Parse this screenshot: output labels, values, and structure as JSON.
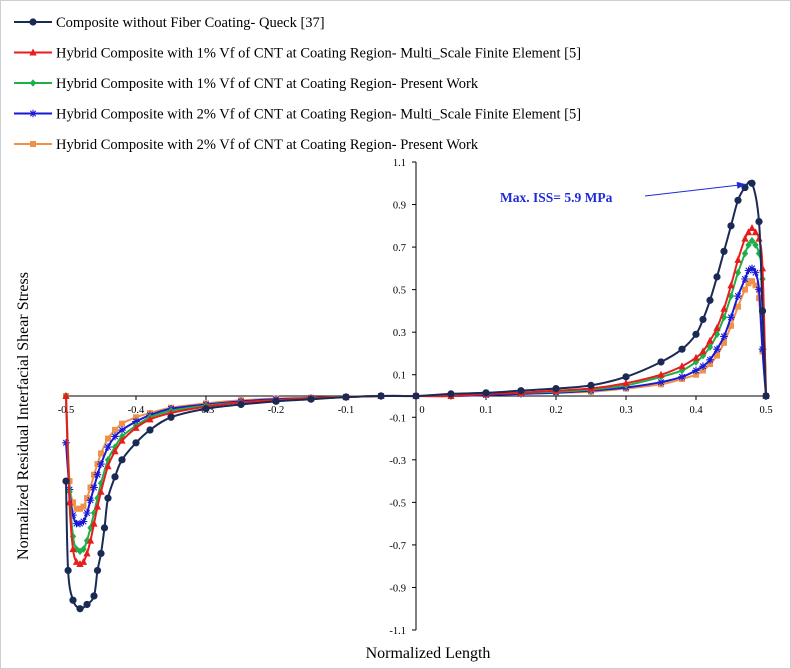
{
  "chart_data": {
    "type": "line",
    "title": "",
    "xlabel": "Normalized  Length",
    "ylabel": "Normalized  Residual Interfacial Shear Stress",
    "xlim": [
      -0.5,
      0.5
    ],
    "ylim": [
      -1.1,
      1.1
    ],
    "x_ticks": [
      "-0.5",
      "-0.4",
      "-0.3",
      "-0.2",
      "-0.1",
      "0",
      "0.1",
      "0.2",
      "0.3",
      "0.4",
      "0.5"
    ],
    "y_ticks": [
      "1.1",
      "0.9",
      "0.7",
      "0.5",
      "0.3",
      "0.1",
      "-0.1",
      "-0.3",
      "-0.5",
      "-0.7",
      "-0.9",
      "-1.1"
    ],
    "grid": false,
    "legend_position": "top",
    "annotation": {
      "text": "Max. ISS= 5.9 MPa",
      "points_to": [
        0.48,
        1.0
      ]
    },
    "series": [
      {
        "name": "Composite without Fiber Coating- Queck [37]",
        "color": "#1a2a55",
        "marker": "circle",
        "x": [
          -0.5,
          -0.497,
          -0.49,
          -0.48,
          -0.47,
          -0.46,
          -0.455,
          -0.45,
          -0.445,
          -0.44,
          -0.43,
          -0.42,
          -0.4,
          -0.38,
          -0.35,
          -0.3,
          -0.25,
          -0.2,
          -0.15,
          -0.1,
          -0.05,
          0,
          0.05,
          0.1,
          0.15,
          0.2,
          0.25,
          0.3,
          0.35,
          0.38,
          0.4,
          0.41,
          0.42,
          0.43,
          0.44,
          0.45,
          0.46,
          0.47,
          0.48,
          0.49,
          0.495,
          0.5
        ],
        "y": [
          -0.4,
          -0.82,
          -0.96,
          -1.0,
          -0.98,
          -0.94,
          -0.82,
          -0.74,
          -0.62,
          -0.48,
          -0.38,
          -0.3,
          -0.22,
          -0.16,
          -0.1,
          -0.06,
          -0.04,
          -0.025,
          -0.015,
          -0.005,
          0.0,
          0.0,
          0.01,
          0.015,
          0.025,
          0.035,
          0.05,
          0.09,
          0.16,
          0.22,
          0.29,
          0.36,
          0.45,
          0.56,
          0.68,
          0.8,
          0.92,
          0.98,
          1.0,
          0.82,
          0.4,
          0.0
        ]
      },
      {
        "name": "Hybrid Composite with 1% Vf of CNT at Coating Region- Multi_Scale Finite Element [5]",
        "color": "#e81c1c",
        "marker": "triangle",
        "x": [
          -0.5,
          -0.495,
          -0.49,
          -0.485,
          -0.48,
          -0.475,
          -0.47,
          -0.465,
          -0.46,
          -0.455,
          -0.45,
          -0.44,
          -0.43,
          -0.42,
          -0.4,
          -0.38,
          -0.35,
          -0.3,
          -0.25,
          -0.2,
          -0.15,
          -0.1,
          -0.05,
          0,
          0.05,
          0.1,
          0.15,
          0.2,
          0.25,
          0.3,
          0.35,
          0.38,
          0.4,
          0.41,
          0.42,
          0.43,
          0.44,
          0.45,
          0.46,
          0.47,
          0.475,
          0.48,
          0.485,
          0.49,
          0.495,
          0.5
        ],
        "y": [
          0.0,
          -0.5,
          -0.72,
          -0.78,
          -0.79,
          -0.78,
          -0.74,
          -0.68,
          -0.6,
          -0.52,
          -0.45,
          -0.33,
          -0.26,
          -0.21,
          -0.15,
          -0.11,
          -0.08,
          -0.05,
          -0.03,
          -0.02,
          -0.01,
          -0.005,
          0.0,
          0.0,
          0.0,
          0.01,
          0.015,
          0.025,
          0.035,
          0.06,
          0.1,
          0.14,
          0.18,
          0.21,
          0.26,
          0.32,
          0.41,
          0.52,
          0.64,
          0.74,
          0.77,
          0.79,
          0.77,
          0.74,
          0.6,
          0.0
        ]
      },
      {
        "name": "Hybrid Composite with 1% Vf of CNT at Coating Region- Present Work",
        "color": "#1faf4a",
        "marker": "diamond",
        "x": [
          -0.5,
          -0.495,
          -0.49,
          -0.485,
          -0.48,
          -0.475,
          -0.47,
          -0.465,
          -0.46,
          -0.455,
          -0.45,
          -0.44,
          -0.43,
          -0.42,
          -0.4,
          -0.38,
          -0.35,
          -0.3,
          -0.25,
          -0.2,
          -0.15,
          -0.1,
          -0.05,
          0,
          0.05,
          0.1,
          0.15,
          0.2,
          0.25,
          0.3,
          0.35,
          0.38,
          0.4,
          0.41,
          0.42,
          0.43,
          0.44,
          0.45,
          0.46,
          0.47,
          0.475,
          0.48,
          0.485,
          0.49,
          0.495,
          0.5
        ],
        "y": [
          0.0,
          -0.45,
          -0.66,
          -0.72,
          -0.73,
          -0.72,
          -0.68,
          -0.62,
          -0.55,
          -0.48,
          -0.41,
          -0.3,
          -0.24,
          -0.19,
          -0.14,
          -0.1,
          -0.07,
          -0.045,
          -0.03,
          -0.02,
          -0.01,
          -0.005,
          0.0,
          0.0,
          0.0,
          0.01,
          0.015,
          0.02,
          0.03,
          0.05,
          0.09,
          0.12,
          0.16,
          0.19,
          0.23,
          0.29,
          0.37,
          0.47,
          0.58,
          0.67,
          0.71,
          0.73,
          0.71,
          0.67,
          0.55,
          0.0
        ]
      },
      {
        "name": "Hybrid Composite with 2% Vf of CNT at Coating Region- Multi_Scale Finite Element [5]",
        "color": "#1818d6",
        "marker": "asterisk",
        "x": [
          -0.5,
          -0.495,
          -0.49,
          -0.485,
          -0.48,
          -0.475,
          -0.47,
          -0.465,
          -0.46,
          -0.455,
          -0.45,
          -0.44,
          -0.43,
          -0.42,
          -0.4,
          -0.38,
          -0.35,
          -0.3,
          -0.25,
          -0.2,
          -0.15,
          -0.1,
          -0.05,
          0,
          0.05,
          0.1,
          0.15,
          0.2,
          0.25,
          0.3,
          0.35,
          0.38,
          0.4,
          0.41,
          0.42,
          0.43,
          0.44,
          0.45,
          0.46,
          0.47,
          0.475,
          0.48,
          0.485,
          0.49,
          0.495,
          0.5
        ],
        "y": [
          -0.22,
          -0.44,
          -0.56,
          -0.6,
          -0.6,
          -0.59,
          -0.55,
          -0.49,
          -0.43,
          -0.37,
          -0.32,
          -0.24,
          -0.19,
          -0.16,
          -0.12,
          -0.09,
          -0.06,
          -0.04,
          -0.025,
          -0.015,
          -0.01,
          -0.005,
          0.0,
          0.0,
          0.0,
          0.005,
          0.01,
          0.015,
          0.025,
          0.04,
          0.065,
          0.09,
          0.12,
          0.14,
          0.17,
          0.22,
          0.28,
          0.37,
          0.47,
          0.55,
          0.59,
          0.6,
          0.58,
          0.5,
          0.22,
          0.0
        ]
      },
      {
        "name": "Hybrid Composite with 2% Vf of CNT at Coating Region- Present Work",
        "color": "#f0914a",
        "marker": "square",
        "x": [
          -0.5,
          -0.495,
          -0.49,
          -0.485,
          -0.48,
          -0.475,
          -0.47,
          -0.465,
          -0.46,
          -0.455,
          -0.45,
          -0.44,
          -0.43,
          -0.42,
          -0.4,
          -0.38,
          -0.35,
          -0.3,
          -0.25,
          -0.2,
          -0.15,
          -0.1,
          -0.05,
          0,
          0.05,
          0.1,
          0.15,
          0.2,
          0.25,
          0.3,
          0.35,
          0.38,
          0.4,
          0.41,
          0.42,
          0.43,
          0.44,
          0.45,
          0.46,
          0.47,
          0.475,
          0.48,
          0.485,
          0.49,
          0.495,
          0.5
        ],
        "y": [
          0.0,
          -0.4,
          -0.5,
          -0.53,
          -0.53,
          -0.52,
          -0.48,
          -0.43,
          -0.37,
          -0.32,
          -0.27,
          -0.2,
          -0.16,
          -0.13,
          -0.1,
          -0.08,
          -0.055,
          -0.035,
          -0.02,
          -0.012,
          -0.008,
          -0.004,
          0.0,
          0.0,
          0.0,
          0.005,
          0.01,
          0.015,
          0.02,
          0.035,
          0.055,
          0.08,
          0.1,
          0.12,
          0.15,
          0.19,
          0.25,
          0.33,
          0.42,
          0.5,
          0.53,
          0.54,
          0.52,
          0.46,
          0.21,
          0.0
        ]
      }
    ]
  }
}
